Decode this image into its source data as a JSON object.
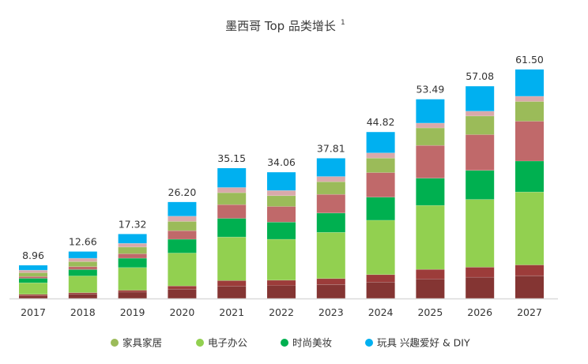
{
  "chart_data": {
    "type": "bar",
    "stacked": true,
    "title": "墨西哥 Top 品类增长",
    "title_footnote": "1",
    "categories": [
      "2017",
      "2018",
      "2019",
      "2020",
      "2021",
      "2022",
      "2023",
      "2024",
      "2025",
      "2026",
      "2027"
    ],
    "totals": [
      "8.96",
      "12.66",
      "17.32",
      "26.20",
      "35.15",
      "34.06",
      "37.81",
      "44.82",
      "53.49",
      "57.08",
      "61.50"
    ],
    "grid": false,
    "legend_position": "bottom",
    "series": [
      {
        "color": "#843533",
        "values": [
          0.7,
          1.2,
          1.7,
          2.5,
          3.3,
          3.5,
          3.75,
          4.4,
          5.2,
          5.7,
          6.1
        ]
      },
      {
        "color": "#9C3C3A",
        "values": [
          0.4,
          0.35,
          0.5,
          0.85,
          1.5,
          1.4,
          1.6,
          2.0,
          2.6,
          2.7,
          2.9
        ]
      },
      {
        "name": "电子办公",
        "color": "#92D050",
        "values": [
          3.1,
          4.5,
          6.1,
          8.85,
          11.7,
          11.0,
          12.4,
          14.6,
          17.2,
          18.2,
          19.6
        ]
      },
      {
        "name": "时尚美妆",
        "color": "#00B050",
        "values": [
          1.2,
          1.7,
          2.5,
          3.7,
          5.0,
          4.6,
          5.2,
          6.2,
          7.3,
          7.8,
          8.3
        ]
      },
      {
        "color": "#C0696A",
        "values": [
          0.5,
          0.8,
          1.2,
          2.3,
          3.7,
          4.2,
          5.0,
          6.6,
          8.8,
          9.6,
          10.7
        ]
      },
      {
        "name": "家具家居",
        "color": "#9BBB59",
        "values": [
          1.0,
          1.35,
          1.8,
          2.5,
          3.2,
          2.9,
          3.4,
          3.9,
          4.7,
          5.0,
          5.3
        ]
      },
      {
        "color": "#D9A9AA",
        "values": [
          0.7,
          0.9,
          1.0,
          1.4,
          1.4,
          1.4,
          1.4,
          1.4,
          1.3,
          1.3,
          1.4
        ]
      },
      {
        "name": "玩具 兴趣爱好 & DIY",
        "color": "#00B0F0",
        "values": [
          1.3,
          1.8,
          2.5,
          3.8,
          5.2,
          4.9,
          4.9,
          5.6,
          6.4,
          6.7,
          7.2
        ]
      }
    ],
    "legend": [
      {
        "label": "家具家居",
        "color": "#9BBB59"
      },
      {
        "label": "电子办公",
        "color": "#92D050"
      },
      {
        "label": "时尚美妆",
        "color": "#00B050"
      },
      {
        "label": "玩具 兴趣爱好 & DIY",
        "color": "#00B0F0"
      }
    ],
    "ylim": [
      0,
      65
    ]
  }
}
